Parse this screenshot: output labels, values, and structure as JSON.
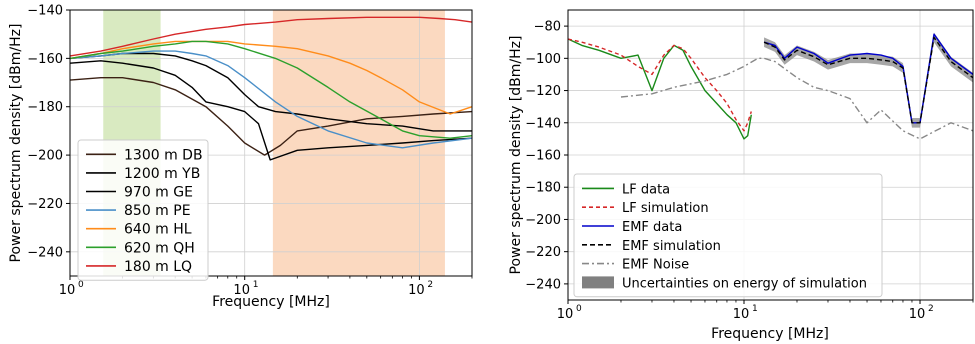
{
  "chart_data": [
    {
      "type": "line",
      "xlabel": "Frequency [MHz]",
      "ylabel": "Power spectrum density [dBm/Hz]",
      "xscale": "log",
      "xlim": [
        1,
        200
      ],
      "ylim": [
        -250,
        -140
      ],
      "x_ticks": [
        1,
        10,
        100
      ],
      "x_tick_labels": [
        "10",
        "10",
        "10"
      ],
      "x_tick_exponents": [
        "0",
        "1",
        "2"
      ],
      "y_ticks": [
        -140,
        -160,
        -180,
        -200,
        -220,
        -240
      ],
      "y_tick_labels": [
        "−140",
        "−160",
        "−180",
        "−200",
        "−220",
        "−240"
      ],
      "grid": true,
      "legend_position": "lower-left",
      "shaded_bands": [
        {
          "x": [
            1.55,
            3.3
          ],
          "color": "#d9eac1"
        },
        {
          "x": [
            14.5,
            140
          ],
          "color": "#fbd9c0"
        }
      ],
      "series": [
        {
          "name": "1300 m DB",
          "color": "#3b2114",
          "x": [
            1,
            1.5,
            2,
            3,
            4,
            6,
            8,
            10,
            13,
            16,
            20,
            30,
            50,
            80,
            120,
            200
          ],
          "values": [
            -169,
            -168,
            -168,
            -170,
            -173,
            -180,
            -188,
            -195,
            -200,
            -196,
            -190,
            -188,
            -185,
            -184,
            -183,
            -182
          ]
        },
        {
          "name": "1200 m YB",
          "color": "#000000",
          "x": [
            1,
            1.5,
            2,
            3,
            4,
            5,
            6,
            8,
            10,
            12,
            14,
            20,
            30,
            50,
            80,
            120,
            200
          ],
          "values": [
            -162,
            -161,
            -162,
            -164,
            -167,
            -172,
            -178,
            -180,
            -182,
            -187,
            -202,
            -198,
            -197,
            -196,
            -195,
            -194,
            -193
          ]
        },
        {
          "name": "970 m GE",
          "color": "#000000",
          "x": [
            1,
            1.5,
            2,
            3,
            4,
            5,
            6,
            8,
            10,
            12,
            15,
            20,
            30,
            50,
            80,
            120,
            200
          ],
          "values": [
            -160,
            -159,
            -158,
            -158,
            -159,
            -161,
            -163,
            -168,
            -175,
            -180,
            -182,
            -183,
            -185,
            -187,
            -188,
            -190,
            -190
          ]
        },
        {
          "name": "850 m PE",
          "color": "#4a8fc8",
          "x": [
            1,
            1.5,
            2,
            3,
            4,
            5,
            6,
            8,
            10,
            15,
            20,
            30,
            50,
            80,
            120,
            200
          ],
          "values": [
            -160,
            -159,
            -158,
            -157,
            -157,
            -158,
            -159,
            -163,
            -168,
            -178,
            -184,
            -190,
            -195,
            -197,
            -195,
            -193
          ]
        },
        {
          "name": "640 m HL",
          "color": "#ff8c1a",
          "x": [
            1,
            1.5,
            2,
            3,
            4,
            5,
            6,
            8,
            10,
            15,
            20,
            30,
            40,
            50,
            60,
            80,
            100,
            150,
            200
          ],
          "values": [
            -160,
            -158,
            -156,
            -154,
            -153,
            -153,
            -153,
            -153,
            -154,
            -155,
            -156,
            -159,
            -162,
            -165,
            -168,
            -173,
            -178,
            -183,
            -180
          ]
        },
        {
          "name": "620 m QH",
          "color": "#2ca02c",
          "x": [
            1,
            1.5,
            2,
            3,
            4,
            5,
            6,
            8,
            10,
            15,
            20,
            30,
            40,
            60,
            80,
            100,
            150,
            200
          ],
          "values": [
            -160,
            -158,
            -157,
            -155,
            -154,
            -153,
            -153,
            -154,
            -156,
            -160,
            -164,
            -172,
            -178,
            -185,
            -190,
            -192,
            -193,
            -192
          ]
        },
        {
          "name": "180 m LQ",
          "color": "#d62728",
          "x": [
            1,
            1.5,
            2,
            3,
            4,
            6,
            8,
            10,
            15,
            20,
            30,
            50,
            70,
            100,
            130,
            160,
            200
          ],
          "values": [
            -159,
            -157,
            -155,
            -152,
            -150,
            -148,
            -147,
            -146,
            -145,
            -144,
            -143.5,
            -143,
            -143,
            -143,
            -143.5,
            -144,
            -145
          ]
        }
      ]
    },
    {
      "type": "line",
      "xlabel": "Frequency [MHz]",
      "ylabel": "Power spectrum density [dBm/Hz]",
      "xscale": "log",
      "xlim": [
        1,
        200
      ],
      "ylim": [
        -250,
        -70
      ],
      "x_ticks": [
        1,
        10,
        100
      ],
      "x_tick_labels": [
        "10",
        "10",
        "10"
      ],
      "x_tick_exponents": [
        "0",
        "1",
        "2"
      ],
      "y_ticks": [
        -80,
        -100,
        -120,
        -140,
        -160,
        -180,
        -200,
        -220,
        -240
      ],
      "y_tick_labels": [
        "−80",
        "−100",
        "−120",
        "−140",
        "−160",
        "−180",
        "−200",
        "−220",
        "−240"
      ],
      "grid": true,
      "legend_position": "lower-left",
      "series": [
        {
          "name": "LF data",
          "color": "#1a8a1a",
          "dash": "",
          "x": [
            1,
            1.2,
            1.5,
            2,
            2.5,
            3,
            3.5,
            4,
            4.5,
            5,
            6,
            7,
            8,
            9,
            10,
            10.5,
            11
          ],
          "values": [
            -88,
            -92,
            -95,
            -100,
            -98,
            -120,
            -100,
            -92,
            -95,
            -105,
            -120,
            -128,
            -135,
            -140,
            -150,
            -148,
            -135
          ]
        },
        {
          "name": "LF simulation",
          "color": "#d62728",
          "dash": "4,3",
          "x": [
            1,
            1.2,
            1.5,
            2,
            2.5,
            3,
            3.5,
            4,
            4.5,
            5,
            6,
            7,
            8,
            9,
            10,
            10.5,
            11
          ],
          "values": [
            -88,
            -90,
            -93,
            -98,
            -105,
            -110,
            -98,
            -92,
            -94,
            -100,
            -112,
            -120,
            -128,
            -138,
            -145,
            -140,
            -133
          ]
        },
        {
          "name": "EMF data",
          "color": "#0000cc",
          "dash": "",
          "x": [
            13,
            15,
            17,
            20,
            25,
            30,
            40,
            50,
            60,
            70,
            80,
            90,
            100,
            120,
            150,
            200
          ],
          "values": [
            -90,
            -92,
            -100,
            -93,
            -97,
            -103,
            -98,
            -97,
            -98,
            -100,
            -105,
            -140,
            -140,
            -85,
            -100,
            -110
          ]
        },
        {
          "name": "EMF simulation",
          "color": "#000000",
          "dash": "5,3",
          "x": [
            13,
            15,
            17,
            20,
            25,
            30,
            40,
            50,
            60,
            70,
            80,
            90,
            100,
            120,
            150,
            200
          ],
          "values": [
            -90,
            -93,
            -101,
            -95,
            -99,
            -104,
            -100,
            -100,
            -101,
            -102,
            -106,
            -140,
            -140,
            -87,
            -102,
            -112
          ]
        },
        {
          "name": "EMF Noise",
          "color": "#888888",
          "dash": "7,3,2,3",
          "x": [
            2,
            3,
            4,
            6,
            8,
            10,
            12,
            13,
            15,
            20,
            25,
            30,
            40,
            50,
            60,
            80,
            100,
            150,
            200
          ],
          "values": [
            -124,
            -122,
            -118,
            -114,
            -110,
            -105,
            -100,
            -100,
            -102,
            -112,
            -118,
            -120,
            -125,
            -140,
            -132,
            -145,
            -150,
            -140,
            -145
          ]
        }
      ],
      "uncertainty_label": "Uncertainties on energy of simulation",
      "uncertainty_color": "#808080"
    }
  ]
}
